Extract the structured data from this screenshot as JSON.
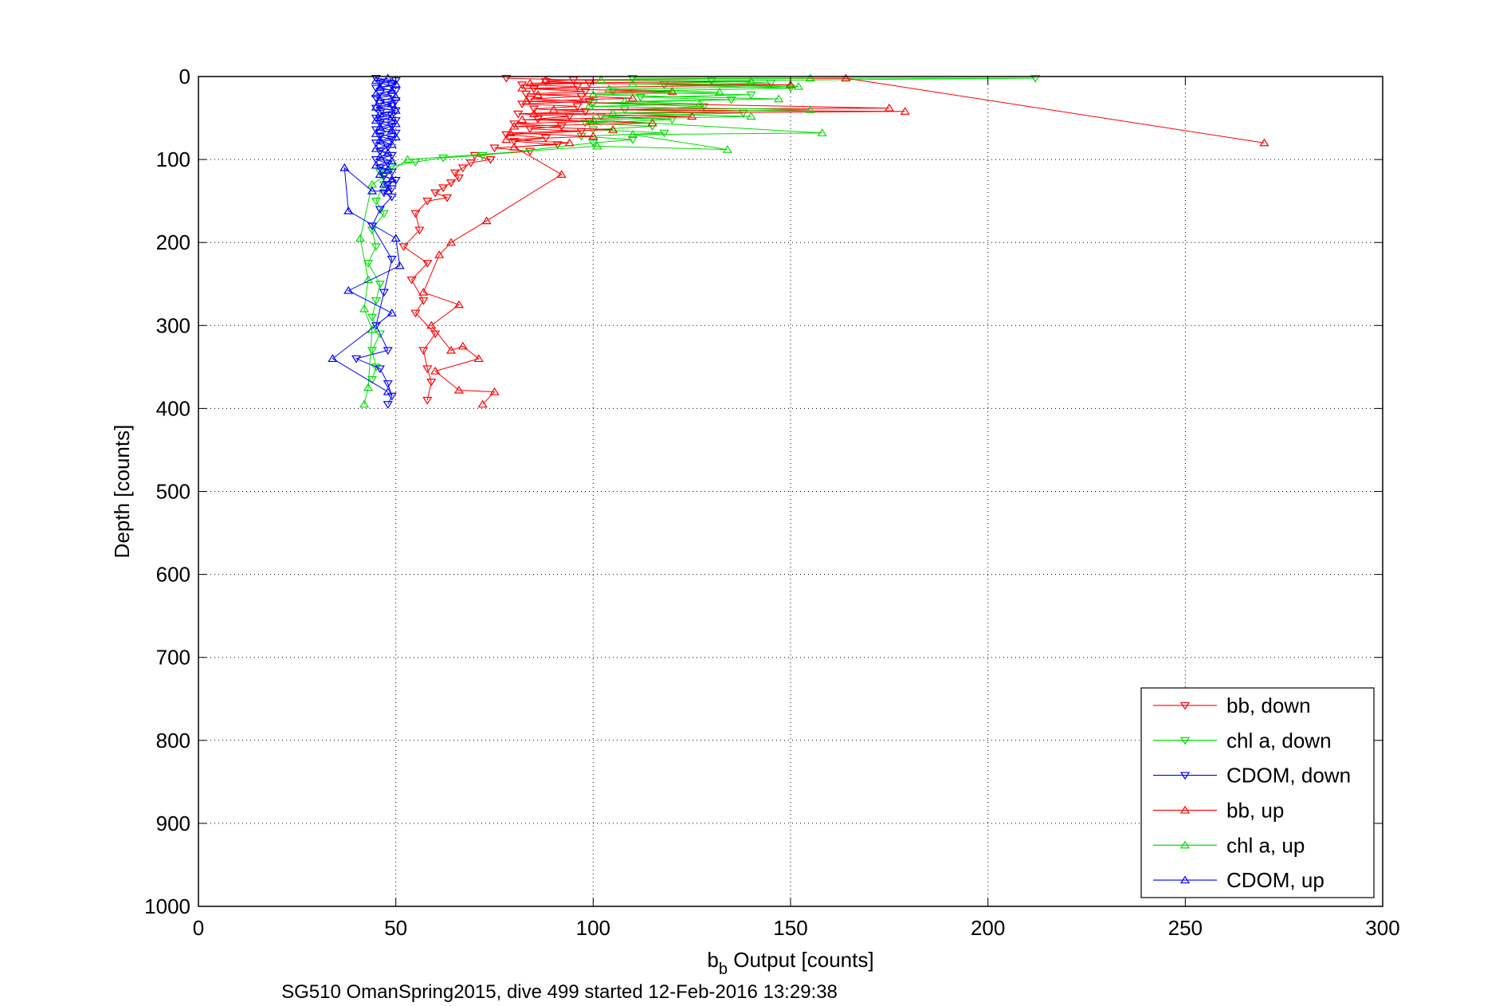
{
  "chart_data": {
    "type": "scatter",
    "xlabel": "b",
    "xlabel_sub": "b",
    "xlabel_rest": " Output [counts]",
    "ylabel": "Depth [counts]",
    "caption": "SG510 OmanSpring2015, dive 499 started 12-Feb-2016 13:29:38",
    "xlim": [
      0,
      300
    ],
    "ylim": [
      0,
      1000
    ],
    "y_reversed": true,
    "grid": true,
    "legend_position": "bottom-right",
    "xticks": [
      "0",
      "50",
      "100",
      "150",
      "200",
      "250",
      "300"
    ],
    "yticks": [
      "0",
      "100",
      "200",
      "300",
      "400",
      "500",
      "600",
      "700",
      "800",
      "900",
      "1000"
    ],
    "series": [
      {
        "name": "bb, down",
        "color": "#ff0000",
        "marker": "triangle-down",
        "connected": true,
        "points": [
          [
            78,
            2
          ],
          [
            95,
            4
          ],
          [
            88,
            6
          ],
          [
            99,
            8
          ],
          [
            82,
            10
          ],
          [
            96,
            12
          ],
          [
            85,
            15
          ],
          [
            98,
            18
          ],
          [
            83,
            21
          ],
          [
            97,
            24
          ],
          [
            84,
            27
          ],
          [
            99,
            30
          ],
          [
            82,
            33
          ],
          [
            96,
            36
          ],
          [
            85,
            39
          ],
          [
            98,
            42
          ],
          [
            81,
            45
          ],
          [
            94,
            48
          ],
          [
            86,
            51
          ],
          [
            99,
            54
          ],
          [
            80,
            57
          ],
          [
            92,
            60
          ],
          [
            84,
            63
          ],
          [
            97,
            66
          ],
          [
            78,
            70
          ],
          [
            88,
            74
          ],
          [
            80,
            78
          ],
          [
            91,
            82
          ],
          [
            75,
            86
          ],
          [
            84,
            90
          ],
          [
            70,
            95
          ],
          [
            74,
            100
          ],
          [
            69,
            104
          ],
          [
            67,
            110
          ],
          [
            65,
            116
          ],
          [
            66,
            122
          ],
          [
            64,
            128
          ],
          [
            62,
            134
          ],
          [
            60,
            140
          ],
          [
            63,
            146
          ],
          [
            58,
            150
          ],
          [
            55,
            165
          ],
          [
            56,
            185
          ],
          [
            52,
            205
          ],
          [
            58,
            225
          ],
          [
            54,
            245
          ],
          [
            57,
            270
          ],
          [
            55,
            285
          ],
          [
            60,
            310
          ],
          [
            57,
            330
          ],
          [
            58,
            352
          ],
          [
            59,
            368
          ],
          [
            58,
            390
          ]
        ]
      },
      {
        "name": "chl a, down",
        "color": "#00dd00",
        "marker": "triangle-down",
        "connected": true,
        "points": [
          [
            110,
            2
          ],
          [
            212,
            2
          ],
          [
            130,
            5
          ],
          [
            145,
            8
          ],
          [
            118,
            10
          ],
          [
            150,
            14
          ],
          [
            105,
            18
          ],
          [
            140,
            22
          ],
          [
            112,
            25
          ],
          [
            135,
            28
          ],
          [
            100,
            32
          ],
          [
            128,
            36
          ],
          [
            108,
            40
          ],
          [
            138,
            44
          ],
          [
            102,
            48
          ],
          [
            120,
            52
          ],
          [
            98,
            56
          ],
          [
            115,
            60
          ],
          [
            100,
            64
          ],
          [
            118,
            68
          ],
          [
            97,
            72
          ],
          [
            110,
            76
          ],
          [
            100,
            80
          ],
          [
            72,
            95
          ],
          [
            62,
            98
          ],
          [
            55,
            103
          ],
          [
            49,
            108
          ],
          [
            46,
            115
          ],
          [
            47,
            130
          ],
          [
            45,
            150
          ],
          [
            47,
            165
          ],
          [
            44,
            185
          ],
          [
            45,
            205
          ],
          [
            43,
            225
          ],
          [
            46,
            250
          ],
          [
            45,
            270
          ],
          [
            44,
            290
          ],
          [
            46,
            310
          ],
          [
            44,
            330
          ],
          [
            45,
            350
          ],
          [
            44,
            365
          ]
        ]
      },
      {
        "name": "CDOM, down",
        "color": "#0000ff",
        "marker": "triangle-down",
        "connected": true,
        "points": [
          [
            45,
            2
          ],
          [
            50,
            5
          ],
          [
            46,
            8
          ],
          [
            49,
            11
          ],
          [
            45,
            14
          ],
          [
            50,
            17
          ],
          [
            46,
            20
          ],
          [
            49,
            23
          ],
          [
            45,
            26
          ],
          [
            50,
            29
          ],
          [
            46,
            32
          ],
          [
            49,
            35
          ],
          [
            45,
            38
          ],
          [
            50,
            41
          ],
          [
            46,
            44
          ],
          [
            49,
            47
          ],
          [
            45,
            50
          ],
          [
            50,
            53
          ],
          [
            46,
            56
          ],
          [
            49,
            60
          ],
          [
            45,
            64
          ],
          [
            50,
            68
          ],
          [
            46,
            72
          ],
          [
            49,
            76
          ],
          [
            45,
            80
          ],
          [
            48,
            85
          ],
          [
            46,
            90
          ],
          [
            49,
            95
          ],
          [
            45,
            100
          ],
          [
            48,
            105
          ],
          [
            46,
            110
          ],
          [
            49,
            115
          ],
          [
            47,
            120
          ],
          [
            50,
            125
          ],
          [
            48,
            130
          ],
          [
            49,
            135
          ],
          [
            47,
            140
          ],
          [
            49,
            145
          ],
          [
            46,
            160
          ],
          [
            44,
            180
          ],
          [
            49,
            220
          ],
          [
            47,
            260
          ],
          [
            45,
            300
          ],
          [
            48,
            330
          ],
          [
            40,
            340
          ],
          [
            46,
            352
          ],
          [
            48,
            370
          ],
          [
            49,
            385
          ],
          [
            48,
            395
          ]
        ]
      },
      {
        "name": "bb, up",
        "color": "#ff0000",
        "marker": "triangle-up",
        "connected": true,
        "points": [
          [
            270,
            80
          ],
          [
            164,
            2
          ],
          [
            88,
            4
          ],
          [
            140,
            6
          ],
          [
            84,
            8
          ],
          [
            150,
            10
          ],
          [
            82,
            14
          ],
          [
            120,
            18
          ],
          [
            86,
            22
          ],
          [
            110,
            26
          ],
          [
            83,
            30
          ],
          [
            175,
            38
          ],
          [
            90,
            40
          ],
          [
            179,
            42
          ],
          [
            85,
            45
          ],
          [
            125,
            48
          ],
          [
            82,
            52
          ],
          [
            115,
            56
          ],
          [
            80,
            60
          ],
          [
            105,
            64
          ],
          [
            79,
            68
          ],
          [
            100,
            72
          ],
          [
            78,
            76
          ],
          [
            94,
            80
          ],
          [
            80,
            85
          ],
          [
            92,
            118
          ],
          [
            73,
            174
          ],
          [
            64,
            200
          ],
          [
            61,
            215
          ],
          [
            57,
            260
          ],
          [
            66,
            275
          ],
          [
            59,
            300
          ],
          [
            64,
            330
          ],
          [
            67,
            325
          ],
          [
            71,
            340
          ],
          [
            60,
            355
          ],
          [
            66,
            378
          ],
          [
            75,
            380
          ],
          [
            72,
            395
          ]
        ]
      },
      {
        "name": "chl a, up",
        "color": "#00dd00",
        "marker": "triangle-up",
        "connected": true,
        "points": [
          [
            155,
            2
          ],
          [
            102,
            4
          ],
          [
            140,
            6
          ],
          [
            110,
            9
          ],
          [
            152,
            12
          ],
          [
            104,
            15
          ],
          [
            132,
            19
          ],
          [
            100,
            22
          ],
          [
            147,
            27
          ],
          [
            108,
            30
          ],
          [
            127,
            33
          ],
          [
            99,
            36
          ],
          [
            155,
            40
          ],
          [
            105,
            44
          ],
          [
            140,
            48
          ],
          [
            100,
            52
          ],
          [
            158,
            68
          ],
          [
            110,
            70
          ],
          [
            134,
            88
          ],
          [
            101,
            84
          ],
          [
            53,
            100
          ],
          [
            44,
            130
          ],
          [
            41,
            195
          ],
          [
            43,
            245
          ],
          [
            42,
            280
          ],
          [
            44,
            305
          ],
          [
            43,
            375
          ],
          [
            42,
            395
          ]
        ]
      },
      {
        "name": "CDOM, up",
        "color": "#0000ff",
        "marker": "triangle-up",
        "connected": true,
        "points": [
          [
            48,
            2
          ],
          [
            45,
            5
          ],
          [
            50,
            9
          ],
          [
            46,
            13
          ],
          [
            49,
            17
          ],
          [
            45,
            21
          ],
          [
            50,
            25
          ],
          [
            46,
            29
          ],
          [
            49,
            33
          ],
          [
            45,
            37
          ],
          [
            50,
            41
          ],
          [
            46,
            45
          ],
          [
            49,
            49
          ],
          [
            45,
            53
          ],
          [
            50,
            57
          ],
          [
            46,
            61
          ],
          [
            49,
            65
          ],
          [
            45,
            69
          ],
          [
            50,
            73
          ],
          [
            46,
            77
          ],
          [
            49,
            82
          ],
          [
            45,
            87
          ],
          [
            48,
            92
          ],
          [
            46,
            97
          ],
          [
            49,
            102
          ],
          [
            45,
            107
          ],
          [
            48,
            112
          ],
          [
            46,
            118
          ],
          [
            49,
            124
          ],
          [
            47,
            130
          ],
          [
            48,
            138
          ],
          [
            44,
            138
          ],
          [
            37,
            110
          ],
          [
            38,
            162
          ],
          [
            50,
            195
          ],
          [
            51,
            228
          ],
          [
            38,
            258
          ],
          [
            49,
            285
          ],
          [
            34,
            340
          ],
          [
            48,
            380
          ]
        ]
      }
    ]
  }
}
